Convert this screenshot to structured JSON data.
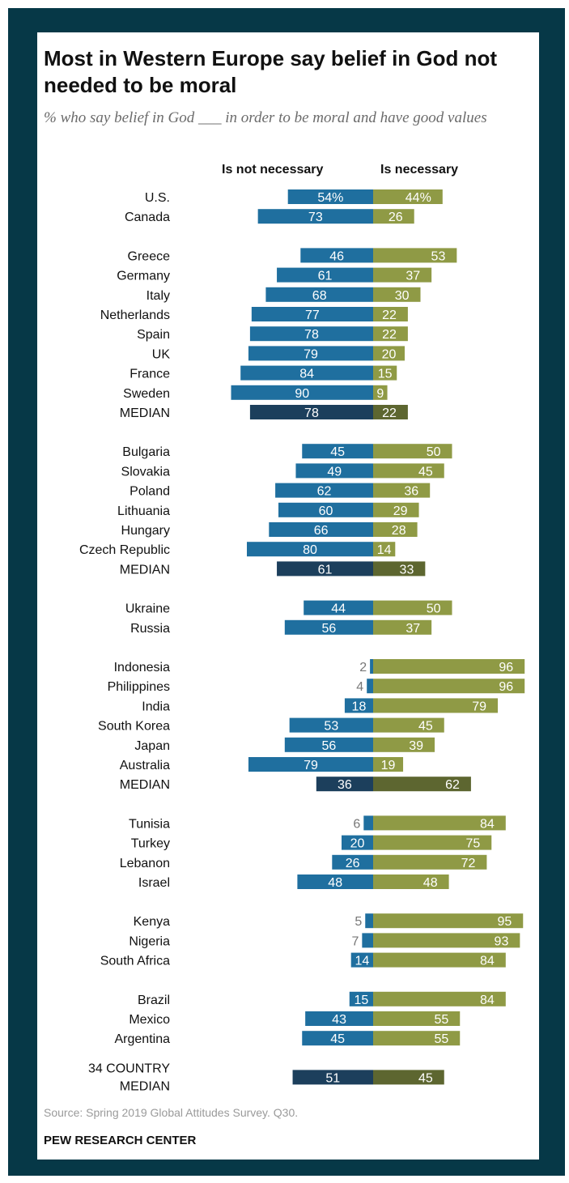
{
  "title": "Most in Western Europe say belief in God not needed to be moral",
  "subtitle": "% who say belief in God ___ in order to be moral and have good values",
  "columns": {
    "left": "Is not necessary",
    "right": "Is necessary"
  },
  "source": "Source: Spring 2019 Global Attitudes Survey. Q30.",
  "brand": "PEW RESEARCH CENTER",
  "colors": {
    "frame": "#063847",
    "not_necessary": "#1f6f9f",
    "necessary": "#8f9a45",
    "median_not_necessary": "#1c3f5c",
    "median_necessary": "#5d6630"
  },
  "chart_data": {
    "type": "bar",
    "orientation": "horizontal-diverging",
    "series": [
      {
        "name": "Is not necessary",
        "direction": "left"
      },
      {
        "name": "Is necessary",
        "direction": "right"
      }
    ],
    "groups": [
      {
        "rows": [
          {
            "label": "U.S.",
            "not_necessary": "54%",
            "necessary": "44%"
          },
          {
            "label": "Canada",
            "not_necessary": 73,
            "necessary": 26
          }
        ]
      },
      {
        "rows": [
          {
            "label": "Greece",
            "not_necessary": 46,
            "necessary": 53
          },
          {
            "label": "Germany",
            "not_necessary": 61,
            "necessary": 37
          },
          {
            "label": "Italy",
            "not_necessary": 68,
            "necessary": 30
          },
          {
            "label": "Netherlands",
            "not_necessary": 77,
            "necessary": 22
          },
          {
            "label": "Spain",
            "not_necessary": 78,
            "necessary": 22
          },
          {
            "label": "UK",
            "not_necessary": 79,
            "necessary": 20
          },
          {
            "label": "France",
            "not_necessary": 84,
            "necessary": 15
          },
          {
            "label": "Sweden",
            "not_necessary": 90,
            "necessary": 9
          },
          {
            "label": "MEDIAN",
            "not_necessary": 78,
            "necessary": 22,
            "median": true
          }
        ]
      },
      {
        "rows": [
          {
            "label": "Bulgaria",
            "not_necessary": 45,
            "necessary": 50
          },
          {
            "label": "Slovakia",
            "not_necessary": 49,
            "necessary": 45
          },
          {
            "label": "Poland",
            "not_necessary": 62,
            "necessary": 36
          },
          {
            "label": "Lithuania",
            "not_necessary": 60,
            "necessary": 29
          },
          {
            "label": "Hungary",
            "not_necessary": 66,
            "necessary": 28
          },
          {
            "label": "Czech Republic",
            "not_necessary": 80,
            "necessary": 14
          },
          {
            "label": "MEDIAN",
            "not_necessary": 61,
            "necessary": 33,
            "median": true
          }
        ]
      },
      {
        "rows": [
          {
            "label": "Ukraine",
            "not_necessary": 44,
            "necessary": 50
          },
          {
            "label": "Russia",
            "not_necessary": 56,
            "necessary": 37
          }
        ]
      },
      {
        "rows": [
          {
            "label": "Indonesia",
            "not_necessary": 2,
            "necessary": 96
          },
          {
            "label": "Philippines",
            "not_necessary": 4,
            "necessary": 96
          },
          {
            "label": "India",
            "not_necessary": 18,
            "necessary": 79
          },
          {
            "label": "South Korea",
            "not_necessary": 53,
            "necessary": 45
          },
          {
            "label": "Japan",
            "not_necessary": 56,
            "necessary": 39
          },
          {
            "label": "Australia",
            "not_necessary": 79,
            "necessary": 19
          },
          {
            "label": "MEDIAN",
            "not_necessary": 36,
            "necessary": 62,
            "median": true
          }
        ]
      },
      {
        "rows": [
          {
            "label": "Tunisia",
            "not_necessary": 6,
            "necessary": 84
          },
          {
            "label": "Turkey",
            "not_necessary": 20,
            "necessary": 75
          },
          {
            "label": "Lebanon",
            "not_necessary": 26,
            "necessary": 72
          },
          {
            "label": "Israel",
            "not_necessary": 48,
            "necessary": 48
          }
        ]
      },
      {
        "rows": [
          {
            "label": "Kenya",
            "not_necessary": 5,
            "necessary": 95
          },
          {
            "label": "Nigeria",
            "not_necessary": 7,
            "necessary": 93
          },
          {
            "label": "South Africa",
            "not_necessary": 14,
            "necessary": 84
          }
        ]
      },
      {
        "rows": [
          {
            "label": "Brazil",
            "not_necessary": 15,
            "necessary": 84
          },
          {
            "label": "Mexico",
            "not_necessary": 43,
            "necessary": 55
          },
          {
            "label": "Argentina",
            "not_necessary": 45,
            "necessary": 55
          }
        ]
      },
      {
        "rows": [
          {
            "label": "34 COUNTRY MEDIAN",
            "label_lines": [
              "34 COUNTRY",
              "MEDIAN"
            ],
            "not_necessary": 51,
            "necessary": 45,
            "median": true,
            "overall": true
          }
        ]
      }
    ],
    "xlim": [
      0,
      100
    ],
    "grid": false,
    "legend": "top"
  }
}
